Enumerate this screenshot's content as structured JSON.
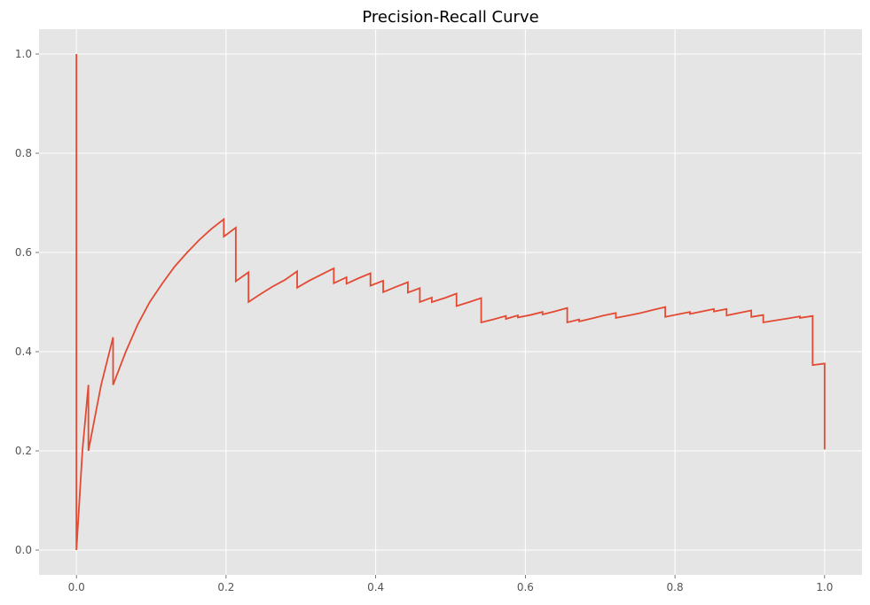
{
  "chart_data": {
    "type": "line",
    "title": "Precision-Recall Curve",
    "xlabel": "",
    "ylabel": "",
    "xlim": [
      -0.05,
      1.05
    ],
    "ylim": [
      -0.05,
      1.05
    ],
    "xticks": [
      0.0,
      0.2,
      0.4,
      0.6,
      0.8,
      1.0
    ],
    "xtick_labels": [
      "0.0",
      "0.2",
      "0.4",
      "0.6",
      "0.8",
      "1.0"
    ],
    "yticks": [
      0.0,
      0.2,
      0.4,
      0.6,
      0.8,
      1.0
    ],
    "ytick_labels": [
      "0.0",
      "0.2",
      "0.4",
      "0.6",
      "0.8",
      "1.0"
    ],
    "grid": true,
    "colors": {
      "background": "#e5e5e5",
      "grid": "#ffffff",
      "line": "#e24a33"
    },
    "series": [
      {
        "x": [
          0.0,
          0.0,
          0.0,
          0.008,
          0.016,
          0.016,
          0.033,
          0.049,
          0.049,
          0.066,
          0.082,
          0.098,
          0.115,
          0.131,
          0.148,
          0.164,
          0.18,
          0.197,
          0.197,
          0.213,
          0.213,
          0.23,
          0.23,
          0.246,
          0.262,
          0.279,
          0.295,
          0.295,
          0.311,
          0.328,
          0.344,
          0.344,
          0.361,
          0.361,
          0.377,
          0.393,
          0.393,
          0.41,
          0.41,
          0.426,
          0.443,
          0.443,
          0.459,
          0.459,
          0.475,
          0.475,
          0.492,
          0.508,
          0.508,
          0.525,
          0.541,
          0.541,
          0.557,
          0.574,
          0.574,
          0.59,
          0.59,
          0.607,
          0.623,
          0.623,
          0.639,
          0.656,
          0.656,
          0.672,
          0.672,
          0.689,
          0.705,
          0.721,
          0.721,
          0.738,
          0.754,
          0.77,
          0.787,
          0.787,
          0.803,
          0.82,
          0.82,
          0.836,
          0.852,
          0.852,
          0.869,
          0.869,
          0.885,
          0.902,
          0.902,
          0.918,
          0.918,
          0.934,
          0.951,
          0.967,
          0.967,
          0.984,
          0.984,
          1.0,
          1.0
        ],
        "y": [
          1.0,
          0.0,
          0.0,
          0.2,
          0.333,
          0.2,
          0.333,
          0.429,
          0.333,
          0.4,
          0.455,
          0.5,
          0.538,
          0.571,
          0.6,
          0.625,
          0.647,
          0.667,
          0.632,
          0.65,
          0.542,
          0.56,
          0.5,
          0.516,
          0.531,
          0.545,
          0.562,
          0.529,
          0.543,
          0.556,
          0.568,
          0.538,
          0.55,
          0.537,
          0.548,
          0.558,
          0.533,
          0.543,
          0.52,
          0.53,
          0.54,
          0.519,
          0.528,
          0.5,
          0.509,
          0.5,
          0.508,
          0.517,
          0.492,
          0.5,
          0.508,
          0.459,
          0.465,
          0.472,
          0.466,
          0.473,
          0.469,
          0.474,
          0.48,
          0.475,
          0.481,
          0.488,
          0.459,
          0.465,
          0.461,
          0.467,
          0.473,
          0.478,
          0.468,
          0.473,
          0.478,
          0.484,
          0.49,
          0.47,
          0.475,
          0.48,
          0.476,
          0.481,
          0.486,
          0.481,
          0.486,
          0.473,
          0.478,
          0.483,
          0.47,
          0.474,
          0.459,
          0.463,
          0.467,
          0.471,
          0.468,
          0.472,
          0.373,
          0.376,
          0.203
        ]
      }
    ]
  }
}
